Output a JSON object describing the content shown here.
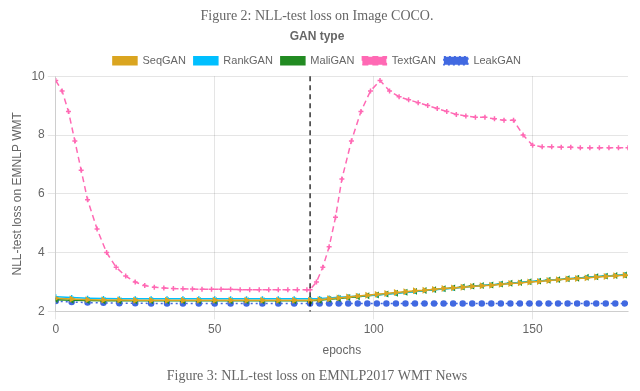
{
  "chart_data": {
    "type": "line",
    "title": "Figure 2: NLL-test loss on Image COCO.",
    "subtitle": "Figure 3: NLL-test loss on EMNLP2017 WMT News",
    "x_label": "epochs",
    "y_label": "NLL-test loss on EMNLP WMT",
    "xlim": [
      0,
      180
    ],
    "ylim": [
      2,
      10
    ],
    "xticks": [
      0,
      50,
      100,
      150
    ],
    "yticks": [
      2,
      4,
      6,
      8,
      10
    ],
    "vlines": [
      80
    ],
    "legend_title": "GAN type",
    "legend": "top",
    "grid": true,
    "series": [
      {
        "name": "SeqGAN",
        "color": "#DAA520",
        "marker": "triangle-right",
        "line_style": "solid",
        "x": [
          0,
          5,
          10,
          15,
          20,
          25,
          30,
          35,
          40,
          45,
          50,
          55,
          60,
          65,
          70,
          75,
          80,
          83,
          86,
          89,
          92,
          95,
          98,
          101,
          104,
          107,
          110,
          113,
          116,
          119,
          122,
          125,
          128,
          131,
          134,
          137,
          140,
          143,
          146,
          149,
          152,
          155,
          158,
          161,
          164,
          167,
          170,
          173,
          176,
          179
        ],
        "values": [
          2.45,
          2.42,
          2.4,
          2.39,
          2.39,
          2.38,
          2.38,
          2.38,
          2.38,
          2.38,
          2.38,
          2.38,
          2.38,
          2.38,
          2.38,
          2.38,
          2.38,
          2.4,
          2.43,
          2.46,
          2.49,
          2.52,
          2.55,
          2.58,
          2.61,
          2.64,
          2.67,
          2.7,
          2.72,
          2.75,
          2.78,
          2.8,
          2.82,
          2.85,
          2.87,
          2.89,
          2.92,
          2.95,
          2.97,
          3.0,
          3.02,
          3.05,
          3.08,
          3.1,
          3.12,
          3.14,
          3.17,
          3.19,
          3.21,
          3.23
        ]
      },
      {
        "name": "RankGAN",
        "color": "#00BFFF",
        "marker": "plus",
        "line_style": "solid",
        "x": [
          0,
          5,
          10,
          15,
          20,
          25,
          30,
          35,
          40,
          45,
          50,
          55,
          60,
          65,
          70,
          75,
          80,
          83,
          86,
          89,
          92,
          95,
          98,
          101,
          104,
          107,
          110,
          113,
          116,
          119,
          122,
          125,
          128,
          131,
          134,
          137,
          140,
          143,
          146,
          149,
          152,
          155,
          158,
          161,
          164,
          167,
          170,
          173,
          176,
          179
        ],
        "values": [
          2.5,
          2.47,
          2.45,
          2.44,
          2.43,
          2.43,
          2.43,
          2.43,
          2.43,
          2.43,
          2.43,
          2.43,
          2.43,
          2.43,
          2.43,
          2.43,
          2.43,
          2.44,
          2.46,
          2.48,
          2.5,
          2.52,
          2.54,
          2.56,
          2.59,
          2.62,
          2.65,
          2.68,
          2.71,
          2.74,
          2.76,
          2.79,
          2.82,
          2.85,
          2.88,
          2.9,
          2.93,
          2.96,
          2.98,
          3.01,
          3.03,
          3.06,
          3.08,
          3.11,
          3.13,
          3.15,
          3.18,
          3.2,
          3.22,
          3.25
        ]
      },
      {
        "name": "MaliGAN",
        "color": "#228B22",
        "marker": "triangle-left",
        "line_style": "solid",
        "x": [
          0,
          5,
          10,
          15,
          20,
          25,
          30,
          35,
          40,
          45,
          50,
          55,
          60,
          65,
          70,
          75,
          80,
          83,
          86,
          89,
          92,
          95,
          98,
          101,
          104,
          107,
          110,
          113,
          116,
          119,
          122,
          125,
          128,
          131,
          134,
          137,
          140,
          143,
          146,
          149,
          152,
          155,
          158,
          161,
          164,
          167,
          170,
          173,
          176,
          179
        ],
        "values": [
          2.4,
          2.38,
          2.37,
          2.36,
          2.36,
          2.36,
          2.36,
          2.36,
          2.36,
          2.36,
          2.36,
          2.36,
          2.36,
          2.36,
          2.36,
          2.36,
          2.36,
          2.38,
          2.41,
          2.44,
          2.47,
          2.5,
          2.53,
          2.56,
          2.59,
          2.62,
          2.65,
          2.68,
          2.71,
          2.74,
          2.77,
          2.8,
          2.83,
          2.86,
          2.88,
          2.9,
          2.93,
          2.96,
          2.98,
          3.01,
          3.03,
          3.06,
          3.08,
          3.11,
          3.13,
          3.16,
          3.18,
          3.2,
          3.22,
          3.24
        ]
      },
      {
        "name": "TextGAN",
        "color": "#FF69B4",
        "marker": "plus",
        "line_style": "dashed",
        "x": [
          0,
          2,
          4,
          6,
          8,
          10,
          13,
          16,
          19,
          22,
          25,
          28,
          31,
          34,
          37,
          40,
          43,
          46,
          49,
          52,
          55,
          58,
          61,
          64,
          67,
          70,
          73,
          76,
          79,
          80,
          82,
          84,
          86,
          88,
          90,
          93,
          96,
          99,
          102,
          105,
          108,
          111,
          114,
          117,
          120,
          123,
          126,
          129,
          132,
          135,
          138,
          141,
          144,
          147,
          150,
          153,
          156,
          159,
          162,
          165,
          168,
          171,
          174,
          177,
          180
        ],
        "values": [
          9.85,
          9.5,
          8.8,
          7.8,
          6.8,
          5.8,
          4.8,
          4.0,
          3.5,
          3.2,
          3.0,
          2.88,
          2.82,
          2.8,
          2.78,
          2.77,
          2.76,
          2.75,
          2.75,
          2.75,
          2.75,
          2.74,
          2.74,
          2.74,
          2.74,
          2.74,
          2.74,
          2.74,
          2.74,
          2.74,
          3.0,
          3.5,
          4.2,
          5.2,
          6.5,
          7.8,
          8.8,
          9.5,
          9.85,
          9.5,
          9.3,
          9.2,
          9.1,
          9.0,
          8.9,
          8.8,
          8.7,
          8.65,
          8.6,
          8.6,
          8.55,
          8.5,
          8.5,
          8.0,
          7.65,
          7.6,
          7.6,
          7.58,
          7.58,
          7.57,
          7.57,
          7.57,
          7.57,
          7.57,
          7.57
        ]
      },
      {
        "name": "LeakGAN",
        "color": "#4169E1",
        "marker": "circle",
        "line_style": "dotted",
        "x": [
          0,
          5,
          10,
          15,
          20,
          25,
          30,
          35,
          40,
          45,
          50,
          55,
          60,
          65,
          70,
          75,
          80,
          83,
          86,
          89,
          92,
          95,
          98,
          101,
          104,
          107,
          110,
          113,
          116,
          119,
          122,
          125,
          128,
          131,
          134,
          137,
          140,
          143,
          146,
          149,
          152,
          155,
          158,
          161,
          164,
          167,
          170,
          173,
          176,
          179
        ],
        "values": [
          2.35,
          2.32,
          2.3,
          2.29,
          2.28,
          2.28,
          2.27,
          2.27,
          2.27,
          2.27,
          2.27,
          2.27,
          2.27,
          2.27,
          2.27,
          2.27,
          2.27,
          2.27,
          2.27,
          2.27,
          2.27,
          2.27,
          2.27,
          2.27,
          2.27,
          2.27,
          2.27,
          2.27,
          2.27,
          2.27,
          2.27,
          2.27,
          2.27,
          2.27,
          2.27,
          2.27,
          2.27,
          2.27,
          2.27,
          2.27,
          2.27,
          2.27,
          2.27,
          2.27,
          2.27,
          2.27,
          2.27,
          2.27,
          2.27,
          2.27
        ]
      }
    ]
  }
}
